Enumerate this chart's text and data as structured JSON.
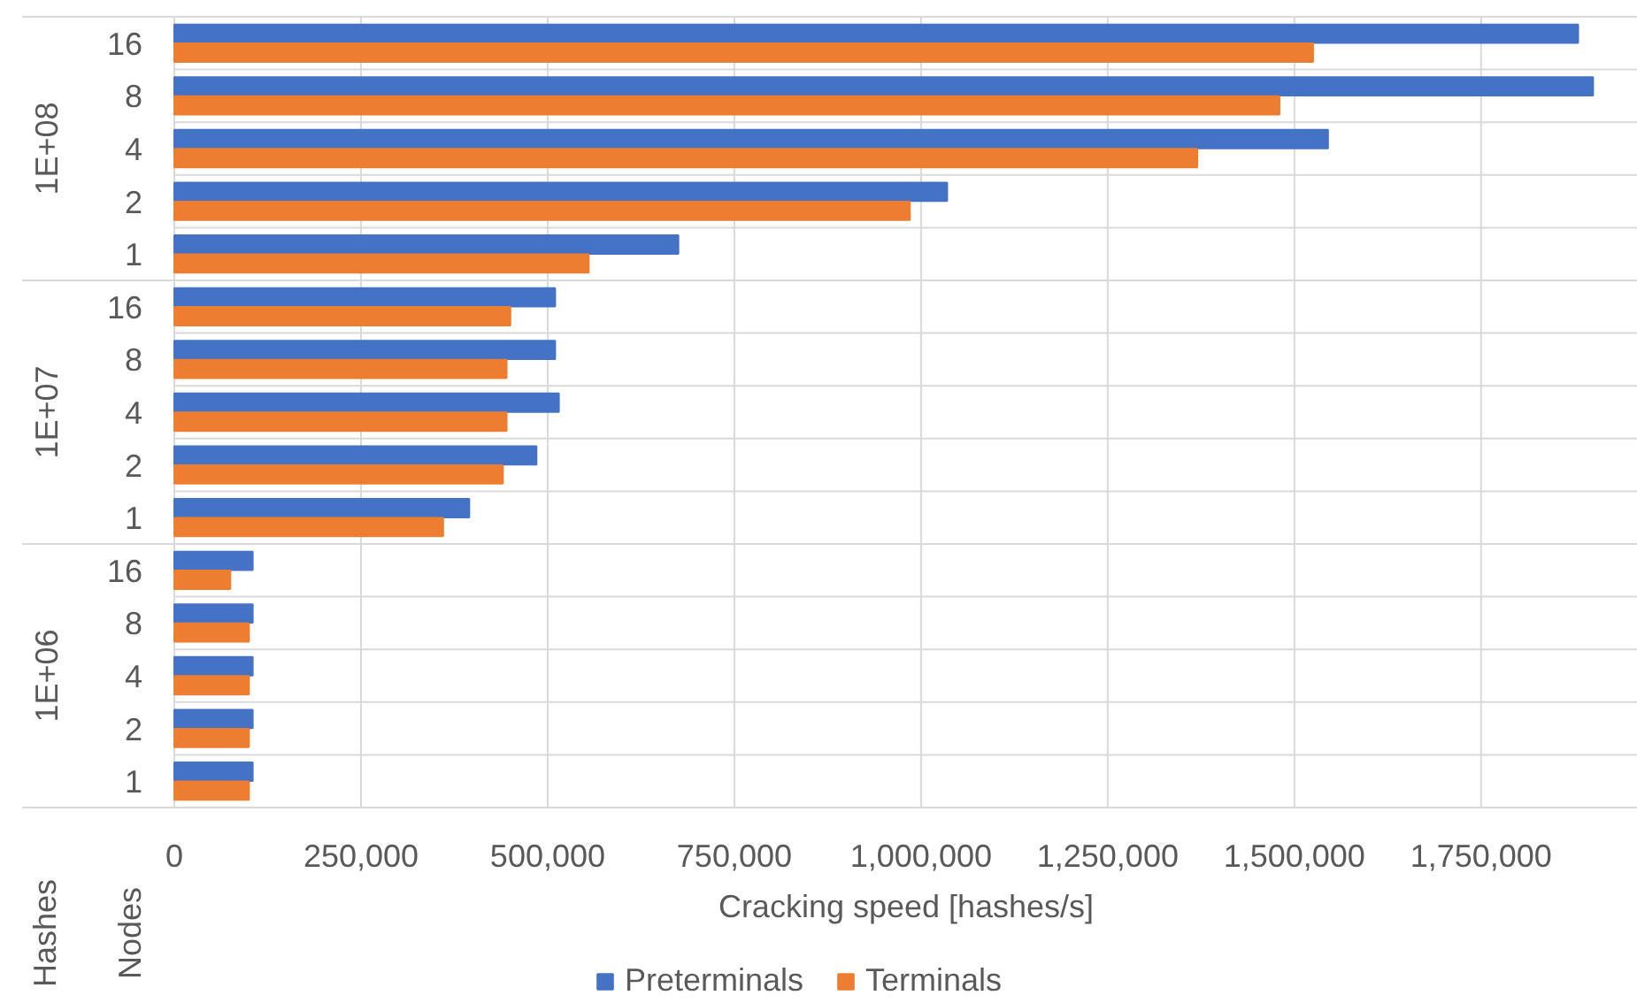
{
  "chart_data": {
    "type": "bar",
    "orientation": "horizontal",
    "categories": [
      "16",
      "8",
      "4",
      "2",
      "1",
      "16",
      "8",
      "4",
      "2",
      "1",
      "16",
      "8",
      "4",
      "2",
      "1"
    ],
    "series": [
      {
        "name": "Preterminals",
        "color": "#4472c4",
        "values": [
          1880000,
          1900000,
          1545000,
          1035000,
          675000,
          510000,
          510000,
          515000,
          485000,
          395000,
          105000,
          105000,
          105000,
          105000,
          105000
        ]
      },
      {
        "name": "Terminals",
        "color": "#ed7d31",
        "values": [
          1525000,
          1480000,
          1370000,
          985000,
          555000,
          450000,
          445000,
          445000,
          440000,
          360000,
          75000,
          100000,
          100000,
          100000,
          100000
        ]
      }
    ],
    "xlabel": "Cracking speed [hashes/s]",
    "xlim": [
      0,
      1960000
    ],
    "xticks": [
      0,
      {
        "value": 250000,
        "label": "250,000"
      },
      {
        "value": 500000,
        "label": "500,000"
      },
      {
        "value": 750000,
        "label": "750,000"
      },
      {
        "value": 1000000,
        "label": "1,000,000"
      },
      {
        "value": 1250000,
        "label": "1,250,000"
      },
      {
        "value": 1500000,
        "label": "1,500,000"
      },
      {
        "value": 1750000,
        "label": "1,750,000"
      }
    ],
    "grid": true,
    "legend": "bottom",
    "annotations": [
      "Hashes",
      "Nodes",
      "1E+08",
      "1E+07",
      "1E+06"
    ]
  }
}
